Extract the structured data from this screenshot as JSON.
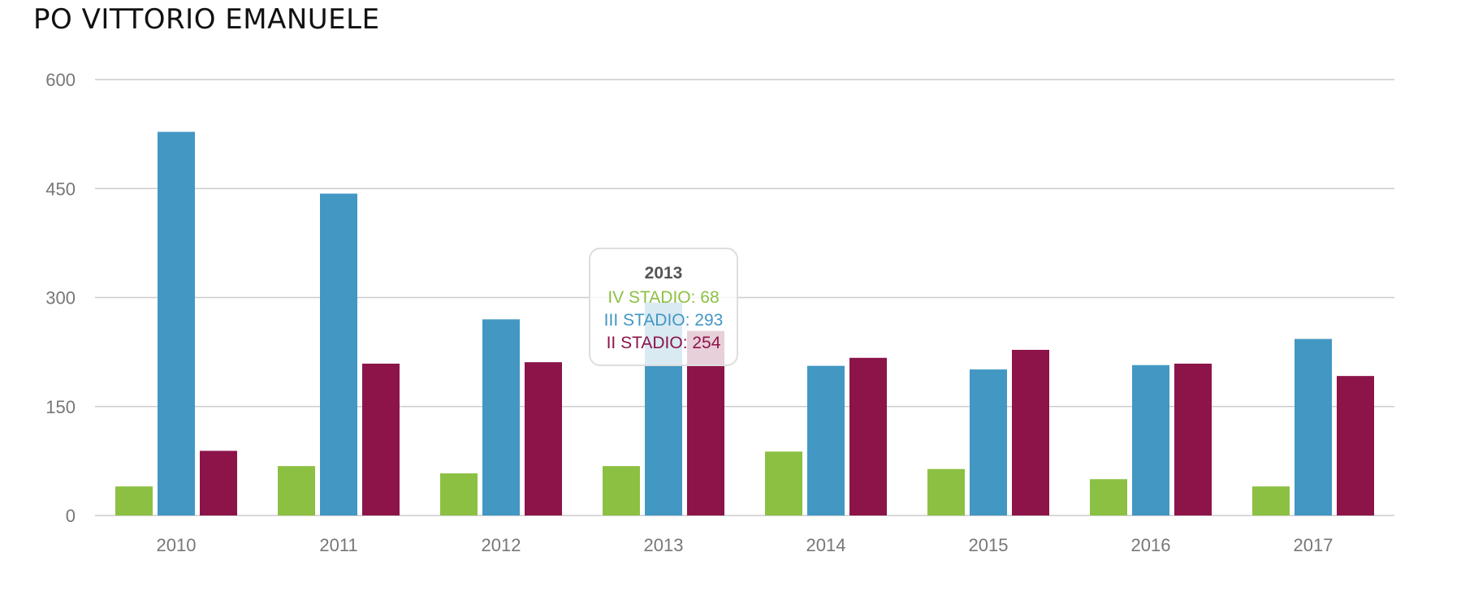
{
  "page": {
    "title": "PO VITTORIO EMANUELE"
  },
  "chart_data": {
    "type": "bar",
    "categories": [
      "2010",
      "2011",
      "2012",
      "2013",
      "2014",
      "2015",
      "2016",
      "2017"
    ],
    "series": [
      {
        "name": "IV STADIO",
        "color": "#8cc043",
        "values": [
          40,
          68,
          58,
          68,
          88,
          64,
          50,
          40
        ]
      },
      {
        "name": "III STADIO",
        "color": "#4297c3",
        "values": [
          528,
          443,
          270,
          293,
          206,
          201,
          207,
          243
        ]
      },
      {
        "name": "II STADIO",
        "color": "#8c1449",
        "values": [
          89,
          209,
          211,
          254,
          217,
          228,
          209,
          192
        ]
      }
    ],
    "ylim": [
      0,
      600
    ],
    "yticks": [
      0,
      150,
      300,
      450,
      600
    ],
    "grid": true,
    "tooltip": {
      "title": "2013",
      "lines": [
        "IV STADIO: 68",
        "III STADIO: 293",
        "II STADIO: 254"
      ]
    }
  }
}
